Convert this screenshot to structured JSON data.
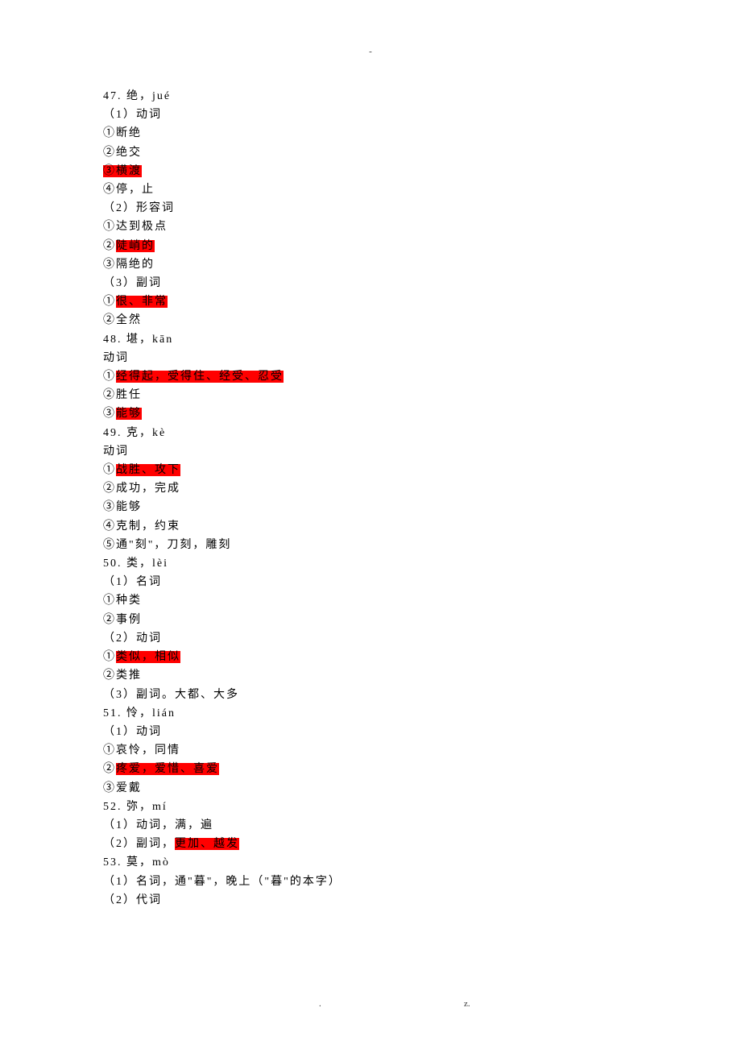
{
  "header_dash": "-",
  "footer_dot": ".",
  "footer_z": "z.",
  "text_color": "#000000",
  "highlight_bg": "#ff0000",
  "background": "#ffffff",
  "font_size_body": 14,
  "line_height": 23.2,
  "letter_spacing": 2,
  "lines": [
    {
      "segments": [
        {
          "t": "47. 绝，jué",
          "hl": false
        }
      ]
    },
    {
      "segments": [
        {
          "t": "（1）动词",
          "hl": false
        }
      ]
    },
    {
      "segments": [
        {
          "t": "①断绝",
          "hl": false
        }
      ]
    },
    {
      "segments": [
        {
          "t": "②绝交",
          "hl": false
        }
      ]
    },
    {
      "segments": [
        {
          "t": "③横渡",
          "hl": true
        }
      ]
    },
    {
      "segments": [
        {
          "t": "④停，止",
          "hl": false
        }
      ]
    },
    {
      "segments": [
        {
          "t": "（2）形容词",
          "hl": false
        }
      ]
    },
    {
      "segments": [
        {
          "t": "①达到极点",
          "hl": false
        }
      ]
    },
    {
      "segments": [
        {
          "t": "②",
          "hl": false
        },
        {
          "t": "陡峭的",
          "hl": true
        }
      ]
    },
    {
      "segments": [
        {
          "t": "③隔绝的",
          "hl": false
        }
      ]
    },
    {
      "segments": [
        {
          "t": "（3）副词",
          "hl": false
        }
      ]
    },
    {
      "segments": [
        {
          "t": "①",
          "hl": false
        },
        {
          "t": "很、非常",
          "hl": true
        }
      ]
    },
    {
      "segments": [
        {
          "t": "②全然",
          "hl": false
        }
      ]
    },
    {
      "segments": [
        {
          "t": "48. 堪，kān",
          "hl": false
        }
      ]
    },
    {
      "segments": [
        {
          "t": "动词",
          "hl": false
        }
      ]
    },
    {
      "segments": [
        {
          "t": "①",
          "hl": false
        },
        {
          "t": "经得起，受得住、经受、忍受",
          "hl": true
        }
      ]
    },
    {
      "segments": [
        {
          "t": "②胜任",
          "hl": false
        }
      ]
    },
    {
      "segments": [
        {
          "t": "③",
          "hl": false
        },
        {
          "t": "能够",
          "hl": true
        }
      ]
    },
    {
      "segments": [
        {
          "t": "49. 克，kè",
          "hl": false
        }
      ]
    },
    {
      "segments": [
        {
          "t": "动词",
          "hl": false
        }
      ]
    },
    {
      "segments": [
        {
          "t": "①",
          "hl": false
        },
        {
          "t": "战胜、攻下",
          "hl": true
        }
      ]
    },
    {
      "segments": [
        {
          "t": "②成功，完成",
          "hl": false
        }
      ]
    },
    {
      "segments": [
        {
          "t": "③能够",
          "hl": false
        }
      ]
    },
    {
      "segments": [
        {
          "t": "④克制，约束",
          "hl": false
        }
      ]
    },
    {
      "segments": [
        {
          "t": "⑤通\"刻\"，刀刻，雕刻",
          "hl": false
        }
      ]
    },
    {
      "segments": [
        {
          "t": "50. 类，lèi",
          "hl": false
        }
      ]
    },
    {
      "segments": [
        {
          "t": "（1）名词",
          "hl": false
        }
      ]
    },
    {
      "segments": [
        {
          "t": "①种类",
          "hl": false
        }
      ]
    },
    {
      "segments": [
        {
          "t": "②事例",
          "hl": false
        }
      ]
    },
    {
      "segments": [
        {
          "t": "（2）动词",
          "hl": false
        }
      ]
    },
    {
      "segments": [
        {
          "t": "①",
          "hl": false
        },
        {
          "t": "类似，相似",
          "hl": true
        }
      ]
    },
    {
      "segments": [
        {
          "t": "②类推",
          "hl": false
        }
      ]
    },
    {
      "segments": [
        {
          "t": "（3）副词。大都、大多",
          "hl": false
        }
      ]
    },
    {
      "segments": [
        {
          "t": "51. 怜，lián",
          "hl": false
        }
      ]
    },
    {
      "segments": [
        {
          "t": "（1）动词",
          "hl": false
        }
      ]
    },
    {
      "segments": [
        {
          "t": "①哀怜，同情",
          "hl": false
        }
      ]
    },
    {
      "segments": [
        {
          "t": "②",
          "hl": false
        },
        {
          "t": "疼爱，爱惜、喜爱",
          "hl": true
        }
      ]
    },
    {
      "segments": [
        {
          "t": "③爱戴",
          "hl": false
        }
      ]
    },
    {
      "segments": [
        {
          "t": "52. 弥，mí",
          "hl": false
        }
      ]
    },
    {
      "segments": [
        {
          "t": "（1）动词，满，遍",
          "hl": false
        }
      ]
    },
    {
      "segments": [
        {
          "t": "（2）副词，",
          "hl": false
        },
        {
          "t": "更加、越发",
          "hl": true
        }
      ]
    },
    {
      "segments": [
        {
          "t": "53. 莫，mò",
          "hl": false
        }
      ]
    },
    {
      "segments": [
        {
          "t": "（1）名词，通\"暮\"，晚上（\"暮\"的本字）",
          "hl": false
        }
      ]
    },
    {
      "segments": [
        {
          "t": "（2）代词",
          "hl": false
        }
      ]
    }
  ]
}
